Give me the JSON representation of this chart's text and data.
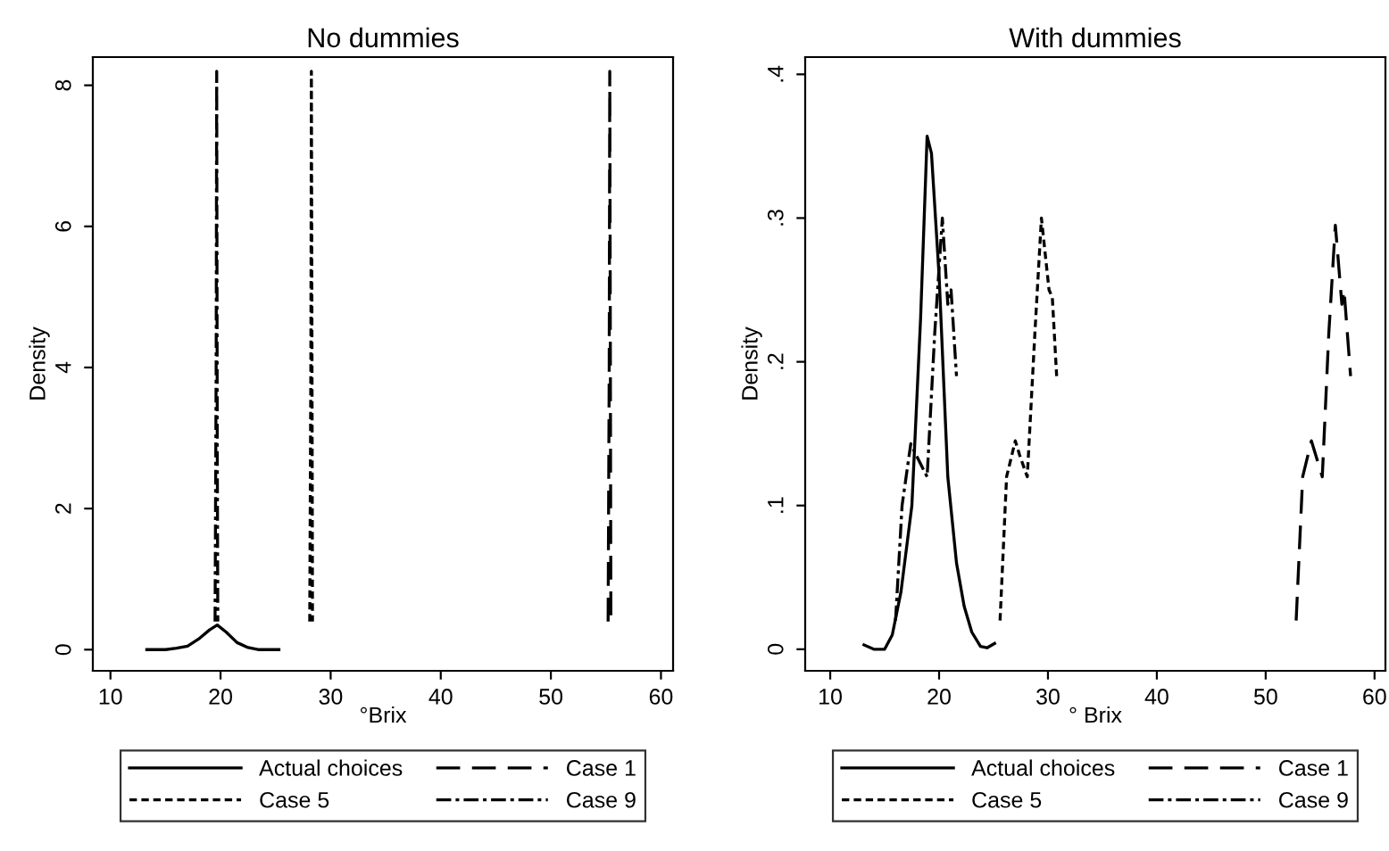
{
  "chart_data": [
    {
      "type": "line",
      "title": "No dummies",
      "xlabel": "°Brix",
      "ylabel": "Density",
      "xlim": [
        8.4,
        61.1
      ],
      "ylim": [
        -0.3,
        8.4
      ],
      "xticks": [
        10,
        20,
        30,
        40,
        50,
        60
      ],
      "yticks": [
        0,
        2,
        4,
        6,
        8
      ],
      "legend": "bottom",
      "grid": false,
      "series": [
        {
          "name": "Actual choices",
          "color": "#000000",
          "line_style": "solid",
          "x": [
            13.3,
            15,
            16,
            17,
            18,
            19,
            19.7,
            20.5,
            21.5,
            22.5,
            23.5,
            25.3
          ],
          "values": [
            0,
            0,
            0.02,
            0.05,
            0.15,
            0.28,
            0.35,
            0.25,
            0.1,
            0.03,
            0,
            0
          ]
        },
        {
          "name": "Case 1",
          "color": "#000000",
          "line_style": "dashed",
          "x": [
            55.2,
            55.3,
            55.35,
            55.4,
            55.45
          ],
          "values": [
            0.4,
            4,
            8.2,
            4.5,
            0.4
          ]
        },
        {
          "name": "Case 5",
          "color": "#000000",
          "line_style": "dotted",
          "x": [
            28.1,
            28.2,
            28.25,
            28.3,
            28.35
          ],
          "values": [
            0.4,
            4,
            8.2,
            4.5,
            0.4
          ]
        },
        {
          "name": "Case 9",
          "color": "#000000",
          "line_style": "dashdot",
          "x": [
            19.5,
            19.6,
            19.65,
            19.7,
            19.75
          ],
          "values": [
            0.4,
            4,
            8.2,
            3,
            0.4
          ]
        }
      ]
    },
    {
      "type": "line",
      "title": "With dummies",
      "xlabel": "° Brix",
      "ylabel": "Density",
      "xlim": [
        7.7,
        61
      ],
      "ylim": [
        -0.015,
        0.412
      ],
      "xticks": [
        10,
        20,
        30,
        40,
        50,
        60
      ],
      "yticks": [
        0,
        {
          "value": 0.1,
          "label": ".1"
        },
        {
          "value": 0.2,
          "label": ".2"
        },
        {
          "value": 0.3,
          "label": ".3"
        },
        {
          "value": 0.4,
          "label": ".4"
        }
      ],
      "legend": "bottom",
      "grid": false,
      "series": [
        {
          "name": "Actual choices",
          "color": "#000000",
          "line_style": "solid",
          "x": [
            13.1,
            14,
            15,
            15.7,
            16.5,
            17.5,
            18.3,
            18.9,
            19.3,
            20,
            20.8,
            21.6,
            22.3,
            23,
            23.8,
            24.4,
            25.1
          ],
          "values": [
            0.003,
            0,
            0,
            0.01,
            0.04,
            0.1,
            0.23,
            0.357,
            0.345,
            0.26,
            0.12,
            0.06,
            0.03,
            0.012,
            0.002,
            0.001,
            0.004
          ]
        },
        {
          "name": "Case 1",
          "color": "#000000",
          "line_style": "dashed",
          "x": [
            52.8,
            53.4,
            54.2,
            54.6,
            55.2,
            55.8,
            56.4,
            57.0,
            57.2,
            57.8
          ],
          "values": [
            0.02,
            0.12,
            0.145,
            0.135,
            0.12,
            0.22,
            0.295,
            0.24,
            0.25,
            0.19
          ]
        },
        {
          "name": "Case 5",
          "color": "#000000",
          "line_style": "dotted",
          "x": [
            25.6,
            26.2,
            27.0,
            27.4,
            28.1,
            28.8,
            29.4,
            30.1,
            30.4,
            30.8
          ],
          "values": [
            0.02,
            0.12,
            0.145,
            0.135,
            0.12,
            0.22,
            0.3,
            0.25,
            0.245,
            0.19
          ]
        },
        {
          "name": "Case 9",
          "color": "#000000",
          "line_style": "dashdot",
          "x": [
            16.0,
            16.6,
            17.4,
            17.9,
            18.9,
            19.6,
            20.3,
            20.8,
            21.1,
            21.6
          ],
          "values": [
            0.02,
            0.1,
            0.143,
            0.135,
            0.12,
            0.22,
            0.3,
            0.24,
            0.25,
            0.19
          ]
        }
      ]
    }
  ]
}
